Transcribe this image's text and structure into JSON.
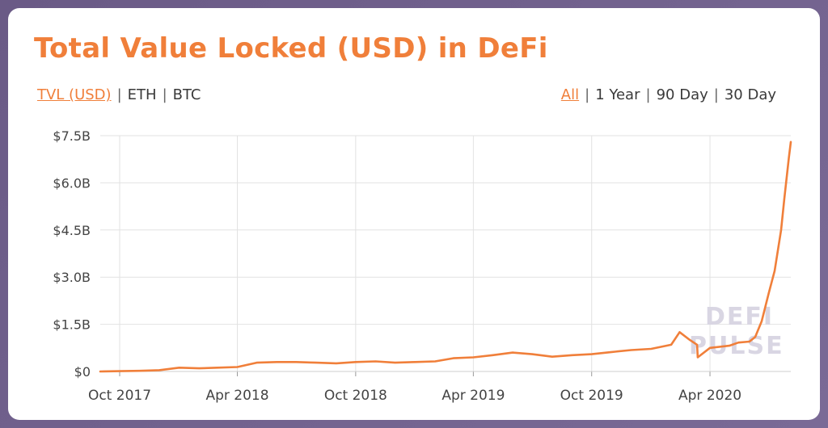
{
  "header": {
    "title": "Total Value Locked (USD) in DeFi"
  },
  "unit_toggles": {
    "items": [
      "TVL (USD)",
      "ETH",
      "BTC"
    ],
    "active": "TVL (USD)"
  },
  "range_toggles": {
    "items": [
      "All",
      "1 Year",
      "90 Day",
      "30 Day"
    ],
    "active": "All"
  },
  "watermark": [
    "DEFI",
    "PULSE"
  ],
  "colors": {
    "accent": "#f07f3a",
    "line": "#f07f3a",
    "grid": "#e2e2e2",
    "background": "#6b5b88"
  },
  "chart_data": {
    "type": "line",
    "title": "Total Value Locked (USD) in DeFi",
    "xlabel": "",
    "ylabel": "",
    "ylim": [
      0,
      7.5
    ],
    "y_ticks": [
      "$0",
      "$1.5B",
      "$3.0B",
      "$4.5B",
      "$6.0B",
      "$7.5B"
    ],
    "y_tick_values": [
      0,
      1.5,
      3.0,
      4.5,
      6.0,
      7.5
    ],
    "x_ticks": [
      "Oct 2017",
      "Apr 2018",
      "Oct 2018",
      "Apr 2019",
      "Oct 2019",
      "Apr 2020"
    ],
    "x_tick_dates": [
      "2017-10-01",
      "2018-04-01",
      "2018-10-01",
      "2019-04-01",
      "2019-10-01",
      "2020-04-01"
    ],
    "xlim": [
      "2017-09-01",
      "2020-08-04"
    ],
    "grid": true,
    "series": [
      {
        "x": [
          "2017-09-01",
          "2017-10-01",
          "2017-11-01",
          "2017-12-01",
          "2018-01-01",
          "2018-02-01",
          "2018-03-01",
          "2018-04-01",
          "2018-05-01",
          "2018-06-01",
          "2018-07-01",
          "2018-08-01",
          "2018-09-01",
          "2018-10-01",
          "2018-11-01",
          "2018-12-01",
          "2019-01-01",
          "2019-02-01",
          "2019-03-01",
          "2019-04-01",
          "2019-05-01",
          "2019-06-01",
          "2019-07-01",
          "2019-08-01",
          "2019-09-01",
          "2019-10-01",
          "2019-11-01",
          "2019-12-01",
          "2020-01-01",
          "2020-02-01",
          "2020-02-14",
          "2020-03-01",
          "2020-03-12",
          "2020-03-13",
          "2020-04-01",
          "2020-05-01",
          "2020-05-15",
          "2020-06-01",
          "2020-06-10",
          "2020-06-20",
          "2020-07-01",
          "2020-07-10",
          "2020-07-20",
          "2020-07-25",
          "2020-08-01",
          "2020-08-04"
        ],
        "values": [
          0.0,
          0.01,
          0.02,
          0.04,
          0.12,
          0.1,
          0.12,
          0.14,
          0.28,
          0.3,
          0.3,
          0.28,
          0.26,
          0.3,
          0.32,
          0.28,
          0.3,
          0.32,
          0.42,
          0.45,
          0.52,
          0.6,
          0.55,
          0.47,
          0.52,
          0.55,
          0.62,
          0.68,
          0.72,
          0.85,
          1.25,
          1.0,
          0.85,
          0.45,
          0.75,
          0.82,
          0.92,
          0.95,
          1.1,
          1.6,
          2.5,
          3.2,
          4.5,
          5.5,
          6.8,
          7.3
        ]
      }
    ]
  }
}
